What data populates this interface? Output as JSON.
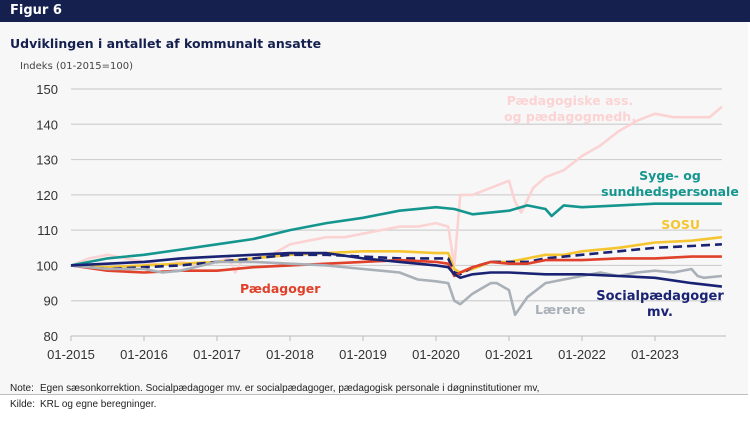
{
  "header": {
    "label": "Figur 6"
  },
  "title": "Udviklingen i antallet af kommunalt ansatte",
  "notes": {
    "note_key": "Note:",
    "note_text": "Egen sæsonkorrektion. Socialpædagoger mv. er socialpædagoger, pædagogisk personale i døgninstitutioner mv,",
    "source_key": "Kilde:",
    "source_text": "KRL og egne beregninger."
  },
  "chart_data": {
    "type": "line",
    "title": "Udviklingen i antallet af kommunalt ansatte",
    "ylabel": "Indeks (01-2015=100)",
    "xlabel": "",
    "ylim": [
      80,
      150
    ],
    "yticks": [
      80,
      90,
      100,
      110,
      120,
      130,
      140,
      150
    ],
    "xticks": [
      "01-2015",
      "01-2016",
      "01-2017",
      "01-2018",
      "01-2019",
      "01-2020",
      "01-2021",
      "01-2022",
      "01-2023"
    ],
    "x_unit": "months since 01-2015",
    "grid": true,
    "series": [
      {
        "name": "Pædagogiske ass. og pædagogmedh.",
        "label": "Pædagogiske ass.\nog pædagogmedh.",
        "color": "#fbd3d3",
        "dash": false,
        "x": [
          0,
          3,
          6,
          9,
          12,
          15,
          18,
          21,
          24,
          26,
          27,
          28,
          30,
          33,
          36,
          39,
          42,
          45,
          48,
          51,
          54,
          57,
          60,
          62,
          63,
          64,
          66,
          69,
          72,
          73,
          74,
          76,
          78,
          81,
          84,
          87,
          90,
          93,
          96,
          99,
          102,
          105,
          107
        ],
        "y": [
          100,
          102,
          103,
          102,
          101,
          100,
          101,
          100,
          101,
          102,
          98,
          101,
          102,
          103,
          106,
          107,
          108,
          108,
          109,
          110,
          111,
          111,
          112,
          111,
          100,
          120,
          120,
          122,
          124,
          118,
          115,
          122,
          125,
          127,
          131,
          134,
          138,
          141,
          143,
          142,
          142,
          142,
          145
        ]
      },
      {
        "name": "Syge- og sundhedspersonale",
        "label": "Syge- og\nsundhedspersonale",
        "color": "#14968f",
        "dash": false,
        "x": [
          0,
          6,
          12,
          18,
          24,
          30,
          36,
          42,
          48,
          54,
          60,
          63,
          66,
          72,
          75,
          78,
          79,
          81,
          84,
          90,
          96,
          102,
          107
        ],
        "y": [
          100,
          102,
          103,
          104.5,
          106,
          107.5,
          110,
          112,
          113.5,
          115.5,
          116.5,
          116,
          114.5,
          115.5,
          117,
          116,
          114,
          117,
          116.5,
          117,
          117.5,
          117.5,
          117.5
        ]
      },
      {
        "name": "SOSU",
        "label": "SOSU",
        "color": "#f5c531",
        "dash": false,
        "x": [
          0,
          6,
          12,
          18,
          24,
          30,
          36,
          42,
          48,
          54,
          60,
          62,
          63,
          64,
          66,
          69,
          72,
          75,
          78,
          81,
          84,
          90,
          96,
          102,
          107
        ],
        "y": [
          100,
          99.5,
          100,
          100.5,
          101,
          102,
          103,
          103.5,
          104,
          104,
          103.5,
          103.5,
          99,
          98,
          99,
          101,
          101,
          102,
          103,
          103,
          104,
          105,
          106.5,
          107,
          108
        ]
      },
      {
        "name": "Socialpædagoger mv. (stiplet)",
        "label": "",
        "color": "#1a2373",
        "dash": true,
        "x": [
          0,
          6,
          12,
          18,
          24,
          30,
          36,
          42,
          48,
          54,
          60,
          62,
          63,
          64,
          66,
          69,
          72,
          75,
          78,
          84,
          90,
          96,
          102,
          107
        ],
        "y": [
          100,
          99,
          99.5,
          100,
          101,
          102,
          103,
          103,
          102.5,
          102,
          102,
          102,
          98,
          97.5,
          99.5,
          101,
          101,
          101,
          102,
          103,
          104,
          105,
          105.5,
          106
        ]
      },
      {
        "name": "Pædagoger",
        "label": "Pædagoger",
        "color": "#e0412a",
        "dash": false,
        "x": [
          0,
          6,
          12,
          18,
          24,
          30,
          36,
          42,
          48,
          54,
          60,
          62,
          63,
          64,
          66,
          69,
          72,
          75,
          78,
          84,
          90,
          96,
          102,
          107
        ],
        "y": [
          100,
          98.5,
          98,
          98.5,
          98.5,
          99.5,
          100,
          100.5,
          101,
          101.5,
          101,
          100.5,
          97,
          98,
          99.5,
          101,
          100.5,
          100.5,
          101.5,
          101.5,
          102,
          102,
          102.5,
          102.5
        ]
      },
      {
        "name": "Lærere",
        "label": "Lærere",
        "color": "#a9b0b8",
        "dash": false,
        "x": [
          0,
          6,
          12,
          15,
          18,
          24,
          30,
          36,
          42,
          48,
          54,
          57,
          60,
          62,
          63,
          64,
          66,
          68,
          69,
          70,
          72,
          73,
          75,
          78,
          81,
          84,
          87,
          90,
          93,
          96,
          99,
          102,
          103,
          104,
          107
        ],
        "y": [
          100,
          99,
          99,
          98,
          98.5,
          101,
          101,
          100.5,
          100,
          99,
          98,
          96,
          95.5,
          95,
          90,
          89,
          92,
          94,
          95,
          95,
          93,
          86,
          91,
          95,
          96,
          97,
          98,
          97,
          98,
          98.5,
          98,
          99,
          97,
          96.5,
          97
        ]
      },
      {
        "name": "Socialpædagoger mv.",
        "label": "Socialpædagoger\nmv.",
        "color": "#1a2373",
        "dash": false,
        "x": [
          0,
          6,
          12,
          18,
          24,
          30,
          36,
          42,
          48,
          54,
          60,
          62,
          63,
          64,
          66,
          69,
          72,
          78,
          84,
          90,
          96,
          102,
          107
        ],
        "y": [
          100,
          100.5,
          101,
          102,
          102.5,
          103,
          103.5,
          103.5,
          102,
          101,
          100,
          99.5,
          97.5,
          96.5,
          97.5,
          98,
          98,
          97.5,
          97.5,
          97,
          96.5,
          95,
          94
        ]
      }
    ]
  }
}
